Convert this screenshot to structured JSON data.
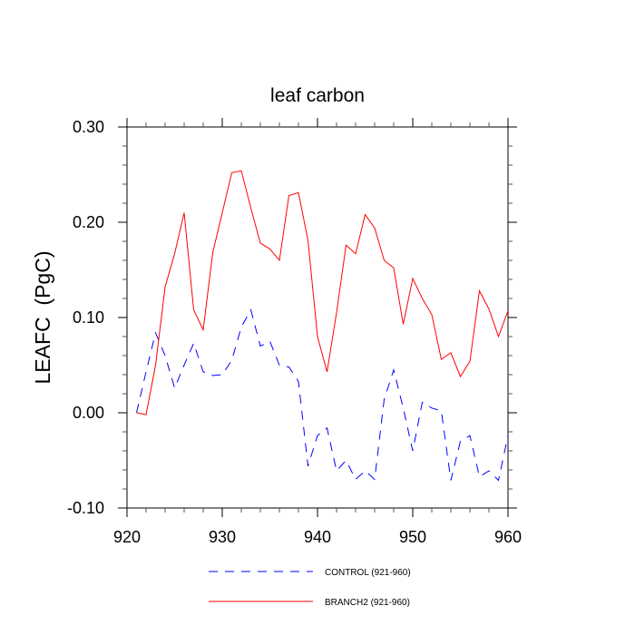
{
  "chart_data": {
    "type": "line",
    "title": "leaf carbon",
    "xlabel": "",
    "ylabel": "LEAFC  (PgC)",
    "xlim": [
      920,
      960
    ],
    "ylim": [
      -0.1,
      0.3
    ],
    "xticks": [
      920,
      930,
      940,
      950,
      960
    ],
    "xtick_labels": [
      "920",
      "930",
      "940",
      "950",
      "960"
    ],
    "yticks": [
      -0.1,
      0.0,
      0.1,
      0.2,
      0.3
    ],
    "ytick_labels": [
      "-0.10",
      "0.00",
      "0.10",
      "0.20",
      "0.30"
    ],
    "grid": false,
    "legend_position": "bottom",
    "x": [
      921,
      922,
      923,
      924,
      925,
      926,
      927,
      928,
      929,
      930,
      931,
      932,
      933,
      934,
      935,
      936,
      937,
      938,
      939,
      940,
      941,
      942,
      943,
      944,
      945,
      946,
      947,
      948,
      949,
      950,
      951,
      952,
      953,
      954,
      955,
      956,
      957,
      958,
      959,
      960
    ],
    "series": [
      {
        "name": "CONTROL (921-960)",
        "color": "#0000ff",
        "dash": "dashed",
        "values": [
          0.0,
          0.043,
          0.084,
          0.06,
          0.026,
          0.05,
          0.073,
          0.043,
          0.039,
          0.04,
          0.055,
          0.09,
          0.108,
          0.07,
          0.075,
          0.05,
          0.048,
          0.033,
          -0.056,
          -0.024,
          -0.016,
          -0.061,
          -0.05,
          -0.07,
          -0.061,
          -0.07,
          0.014,
          0.045,
          0.005,
          -0.04,
          0.011,
          0.005,
          0.002,
          -0.071,
          -0.03,
          -0.024,
          -0.067,
          -0.061,
          -0.071,
          -0.024
        ]
      },
      {
        "name": "BRANCH2 (921-960)",
        "color": "#ff0000",
        "dash": "solid",
        "values": [
          0.0,
          -0.002,
          0.05,
          0.132,
          0.167,
          0.21,
          0.108,
          0.087,
          0.168,
          0.21,
          0.252,
          0.254,
          0.215,
          0.178,
          0.172,
          0.16,
          0.228,
          0.231,
          0.181,
          0.08,
          0.043,
          0.105,
          0.176,
          0.167,
          0.208,
          0.194,
          0.16,
          0.152,
          0.093,
          0.141,
          0.12,
          0.103,
          0.056,
          0.063,
          0.038,
          0.054,
          0.128,
          0.109,
          0.08,
          0.107
        ]
      }
    ]
  }
}
